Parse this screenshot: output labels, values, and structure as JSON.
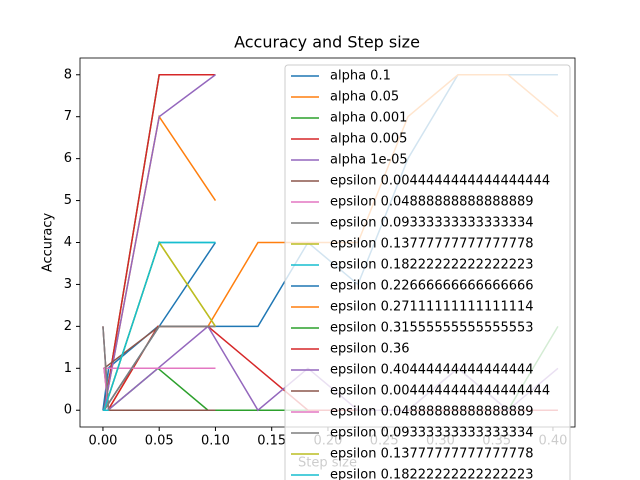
{
  "chart_data": {
    "type": "line",
    "title": "Accuracy and Step size",
    "x_label": "Step size",
    "y_label": "Accuracy",
    "xlim": [
      -0.0204,
      0.4196
    ],
    "ylim": [
      -0.4,
      8.4
    ],
    "xticks": [
      {
        "value": 0,
        "label": "0.00"
      },
      {
        "value": 0.05,
        "label": "0.05"
      },
      {
        "value": 0.1,
        "label": "0.10"
      },
      {
        "value": 0.15,
        "label": "0.15"
      },
      {
        "value": 0.2,
        "label": "0.20"
      },
      {
        "value": 0.25,
        "label": "0.25"
      },
      {
        "value": 0.3,
        "label": "0.30"
      },
      {
        "value": 0.35,
        "label": "0.35"
      },
      {
        "value": 0.4,
        "label": "0.40"
      }
    ],
    "yticks": [
      0,
      1,
      2,
      3,
      4,
      5,
      6,
      7,
      8
    ],
    "legend": "upper right",
    "series": [
      {
        "name": "alpha 0.1",
        "color": "#1f77b4",
        "x": [
          0.00444,
          0.04889,
          0.09333,
          0.13778,
          0.18222,
          0.22667,
          0.27111,
          0.31556,
          0.36,
          0.40444
        ],
        "values": [
          1,
          2,
          2,
          2,
          4,
          3,
          6,
          8,
          8,
          8
        ]
      },
      {
        "name": "alpha 0.05",
        "color": "#ff7f0e",
        "x": [
          0.00444,
          0.04889,
          0.09333,
          0.13778,
          0.18222,
          0.22667,
          0.27111,
          0.31556,
          0.36,
          0.40444
        ],
        "values": [
          0,
          2,
          2,
          4,
          4,
          4,
          7,
          8,
          8,
          7
        ]
      },
      {
        "name": "alpha 0.001",
        "color": "#2ca02c",
        "x": [
          0.00444,
          0.04889,
          0.09333,
          0.13778,
          0.18222,
          0.22667,
          0.27111,
          0.31556,
          0.36,
          0.40444
        ],
        "values": [
          0,
          1,
          0,
          0,
          0,
          0,
          0,
          1,
          0,
          2
        ]
      },
      {
        "name": "alpha 0.005",
        "color": "#d62728",
        "x": [
          0.00444,
          0.04889,
          0.09333,
          0.13778,
          0.18222,
          0.22667,
          0.27111,
          0.31556,
          0.36,
          0.40444
        ],
        "values": [
          0,
          2,
          2,
          1,
          0,
          0,
          0,
          0,
          0,
          0
        ]
      },
      {
        "name": "alpha 1e-05",
        "color": "#9467bd",
        "x": [
          0.00444,
          0.04889,
          0.09333,
          0.13778,
          0.18222,
          0.22667,
          0.27111,
          0.31556,
          0.36,
          0.40444
        ],
        "values": [
          0,
          1,
          2,
          0,
          1,
          0,
          0,
          1,
          0,
          1
        ]
      },
      {
        "name": "epsilon 0.0044444444444444444",
        "color": "#8c564b",
        "x": [
          0.1,
          0.05,
          0.001,
          0.005,
          1e-05
        ],
        "values": [
          0,
          0,
          0,
          0,
          0
        ]
      },
      {
        "name": "epsilon 0.04888888888888889",
        "color": "#e377c2",
        "x": [
          0.1,
          0.05,
          0.001,
          0.005,
          1e-05
        ],
        "values": [
          1,
          1,
          1,
          1,
          1
        ]
      },
      {
        "name": "epsilon 0.09333333333333334",
        "color": "#7f7f7f",
        "x": [
          0.1,
          0.05,
          0.001,
          0.005,
          1e-05
        ],
        "values": [
          2,
          2,
          0,
          0,
          0
        ]
      },
      {
        "name": "epsilon 0.13777777777777778",
        "color": "#bcbd22",
        "x": [
          0.1,
          0.05,
          0.001,
          0.005,
          1e-05
        ],
        "values": [
          2,
          4,
          0,
          0,
          0
        ]
      },
      {
        "name": "epsilon 0.18222222222222223",
        "color": "#17becf",
        "x": [
          0.1,
          0.05,
          0.001,
          0.005,
          1e-05
        ],
        "values": [
          4,
          4,
          0,
          0,
          0
        ]
      },
      {
        "name": "epsilon 0.22666666666666666",
        "color": "#1f77b4",
        "x": [
          0.1,
          0.05,
          0.001,
          0.005,
          1e-05
        ],
        "values": [
          4,
          2,
          0,
          1,
          0
        ]
      },
      {
        "name": "epsilon 0.27111111111111114",
        "color": "#ff7f0e",
        "x": [
          0.1,
          0.05,
          0.001,
          0.005,
          1e-05
        ],
        "values": [
          5,
          7,
          0,
          0,
          2
        ]
      },
      {
        "name": "epsilon 0.31555555555555553",
        "color": "#2ca02c",
        "x": [
          0.1,
          0.05,
          0.001,
          0.005,
          1e-05
        ],
        "values": [
          8,
          8,
          0,
          0,
          0
        ]
      },
      {
        "name": "epsilon 0.36",
        "color": "#d62728",
        "x": [
          0.1,
          0.05,
          0.001,
          0.005,
          1e-05
        ],
        "values": [
          8,
          8,
          0,
          0,
          0
        ]
      },
      {
        "name": "epsilon 0.40444444444444444",
        "color": "#9467bd",
        "x": [
          0.1,
          0.05,
          0.001,
          0.005,
          1e-05
        ],
        "values": [
          8,
          7,
          0,
          0,
          2
        ]
      },
      {
        "name": "epsilon 0.0044444444444444444",
        "color": "#8c564b",
        "x": [
          0.1,
          0.05,
          0.001,
          0.005,
          1e-05
        ],
        "values": [
          2,
          2,
          1,
          0,
          0
        ]
      },
      {
        "name": "epsilon 0.04888888888888889",
        "color": "#e377c2",
        "x": [
          0.1,
          0.05,
          0.001,
          0.005,
          1e-05
        ],
        "values": [
          1,
          1,
          1,
          0,
          0
        ]
      },
      {
        "name": "epsilon 0.09333333333333334",
        "color": "#7f7f7f",
        "x": [
          0.1,
          0.05,
          0.001,
          0.005,
          1e-05
        ],
        "values": [
          2,
          2,
          0,
          0,
          2
        ]
      },
      {
        "name": "epsilon 0.13777777777777778",
        "color": "#bcbd22",
        "x": [
          0.1,
          0.05,
          0.001,
          0.005,
          1e-05
        ],
        "values": [
          2,
          4,
          0,
          0,
          0
        ]
      },
      {
        "name": "epsilon 0.18222222222222223",
        "color": "#17becf",
        "x": [
          0.1,
          0.05,
          0.001,
          0.005,
          1e-05
        ],
        "values": [
          4,
          4,
          0,
          0,
          0
        ]
      }
    ]
  }
}
